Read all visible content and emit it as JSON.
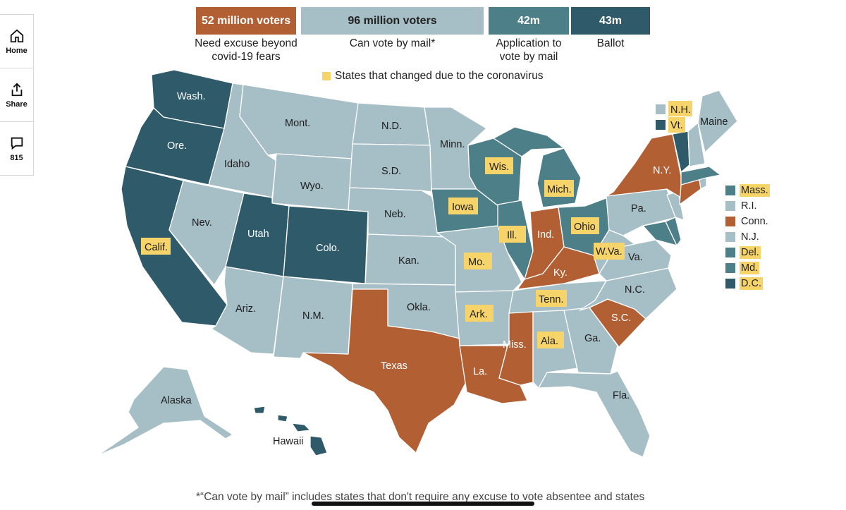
{
  "colors": {
    "excuse": "#b35f34",
    "mail": "#a6bec5",
    "application": "#4d7f88",
    "ballot": "#2e5a69",
    "changed": "#f6d46a"
  },
  "rail": {
    "home_label": "Home",
    "share_label": "Share",
    "comments_count": "815"
  },
  "legend": {
    "excuse_value": "52 million voters",
    "excuse_caption_1": "Need excuse beyond",
    "excuse_caption_2": "covid-19 fears",
    "mail_value": "96 million voters",
    "mail_caption": "Can vote by mail*",
    "application_value": "42m",
    "application_caption_1": "Application to",
    "application_caption_2": "vote by mail",
    "ballot_value": "43m",
    "ballot_caption": "Ballot",
    "changed_note": "States that changed due to the coronavirus"
  },
  "states": {
    "wa": "Wash.",
    "or": "Ore.",
    "ca": "Calif.",
    "id": "Idaho",
    "nv": "Nev.",
    "mt": "Mont.",
    "wy": "Wyo.",
    "ut": "Utah",
    "co": "Colo.",
    "az": "Ariz.",
    "nm": "N.M.",
    "nd": "N.D.",
    "sd": "S.D.",
    "ne": "Neb.",
    "ks": "Kan.",
    "ok": "Okla.",
    "tx": "Texas",
    "mn": "Minn.",
    "ia": "Iowa",
    "mo": "Mo.",
    "ar": "Ark.",
    "la": "La.",
    "wi": "Wis.",
    "il": "Ill.",
    "mi": "Mich.",
    "in": "Ind.",
    "oh": "Ohio",
    "ky": "Ky.",
    "tn": "Tenn.",
    "ms": "Miss.",
    "al": "Ala.",
    "ga": "Ga.",
    "fl": "Fla.",
    "sc": "S.C.",
    "nc": "N.C.",
    "va": "Va.",
    "wv": "W.Va.",
    "pa": "Pa.",
    "ny": "N.Y.",
    "me": "Maine",
    "ak": "Alaska",
    "hi": "Hawaii"
  },
  "northeast_legend": {
    "nh": "N.H.",
    "vt": "Vt.",
    "ma": "Mass.",
    "ri": "R.I.",
    "ct": "Conn.",
    "nj": "N.J.",
    "de": "Del.",
    "md": "Md.",
    "dc": "D.C."
  },
  "footnote": "*“Can vote by mail” includes states that don't require any excuse to vote absentee and states"
}
